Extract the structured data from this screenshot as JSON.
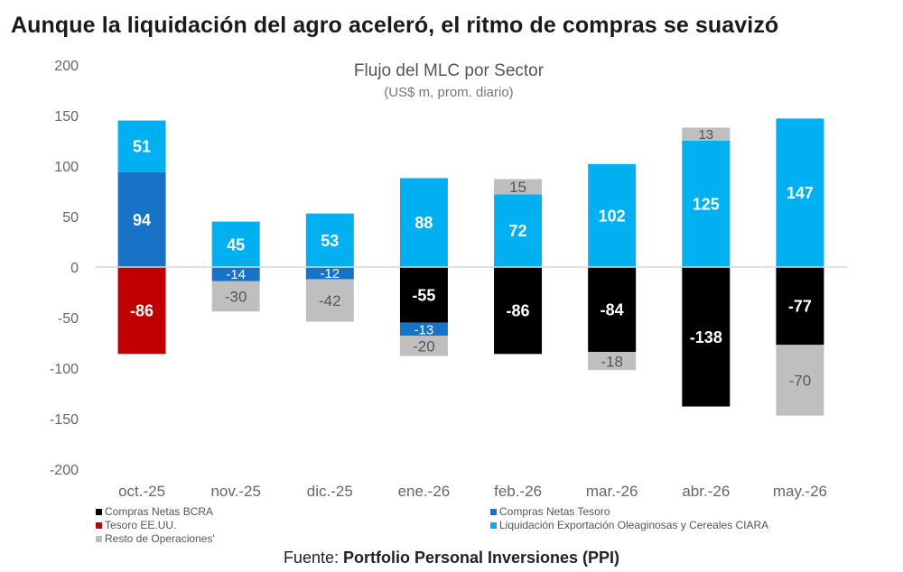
{
  "headline": "Aunque la liquidación del agro aceleró, el ritmo de compras se suavizó",
  "source": {
    "prefix": "Fuente: ",
    "name": "Portfolio Personal Inversiones (PPI)"
  },
  "colors": {
    "compras_bcra": "#000000",
    "compras_tesoro": "#1673c6",
    "tesoro_eeuu": "#c00000",
    "liquidacion_ciara": "#00b0f0",
    "resto": "#bfbfbf"
  },
  "chart_data": {
    "type": "bar",
    "stacked": true,
    "title": "Flujo del MLC por Sector",
    "subtitle": "(US$ m, prom. diario)",
    "xlabel": "",
    "ylabel": "",
    "ylim": [
      -200,
      200
    ],
    "yticks": [
      -200,
      -150,
      -100,
      -50,
      0,
      50,
      100,
      150,
      200
    ],
    "grid": false,
    "legend_position": "bottom",
    "categories": [
      "oct.-25",
      "nov.-25",
      "dic.-25",
      "ene.-26",
      "feb.-26",
      "mar.-26",
      "abr.-26",
      "may.-26"
    ],
    "series": [
      {
        "key": "compras_bcra",
        "name": "Compras Netas BCRA",
        "values": [
          null,
          null,
          null,
          -55,
          -86,
          -84,
          -138,
          -77
        ]
      },
      {
        "key": "compras_tesoro",
        "name": "Compras Netas Tesoro",
        "values": [
          94,
          -14,
          -12,
          -13,
          null,
          null,
          null,
          null
        ]
      },
      {
        "key": "tesoro_eeuu",
        "name": "Tesoro EE.UU.",
        "values": [
          -86,
          null,
          null,
          null,
          null,
          null,
          null,
          null
        ]
      },
      {
        "key": "liquidacion_ciara",
        "name": "Liquidación Exportación Oleaginosas y Cereales CIARA",
        "values": [
          51,
          45,
          53,
          88,
          72,
          102,
          125,
          147
        ]
      },
      {
        "key": "resto",
        "name": "Resto de Operaciones'",
        "values": [
          null,
          -30,
          -42,
          -20,
          15,
          -18,
          13,
          -70
        ]
      }
    ]
  }
}
